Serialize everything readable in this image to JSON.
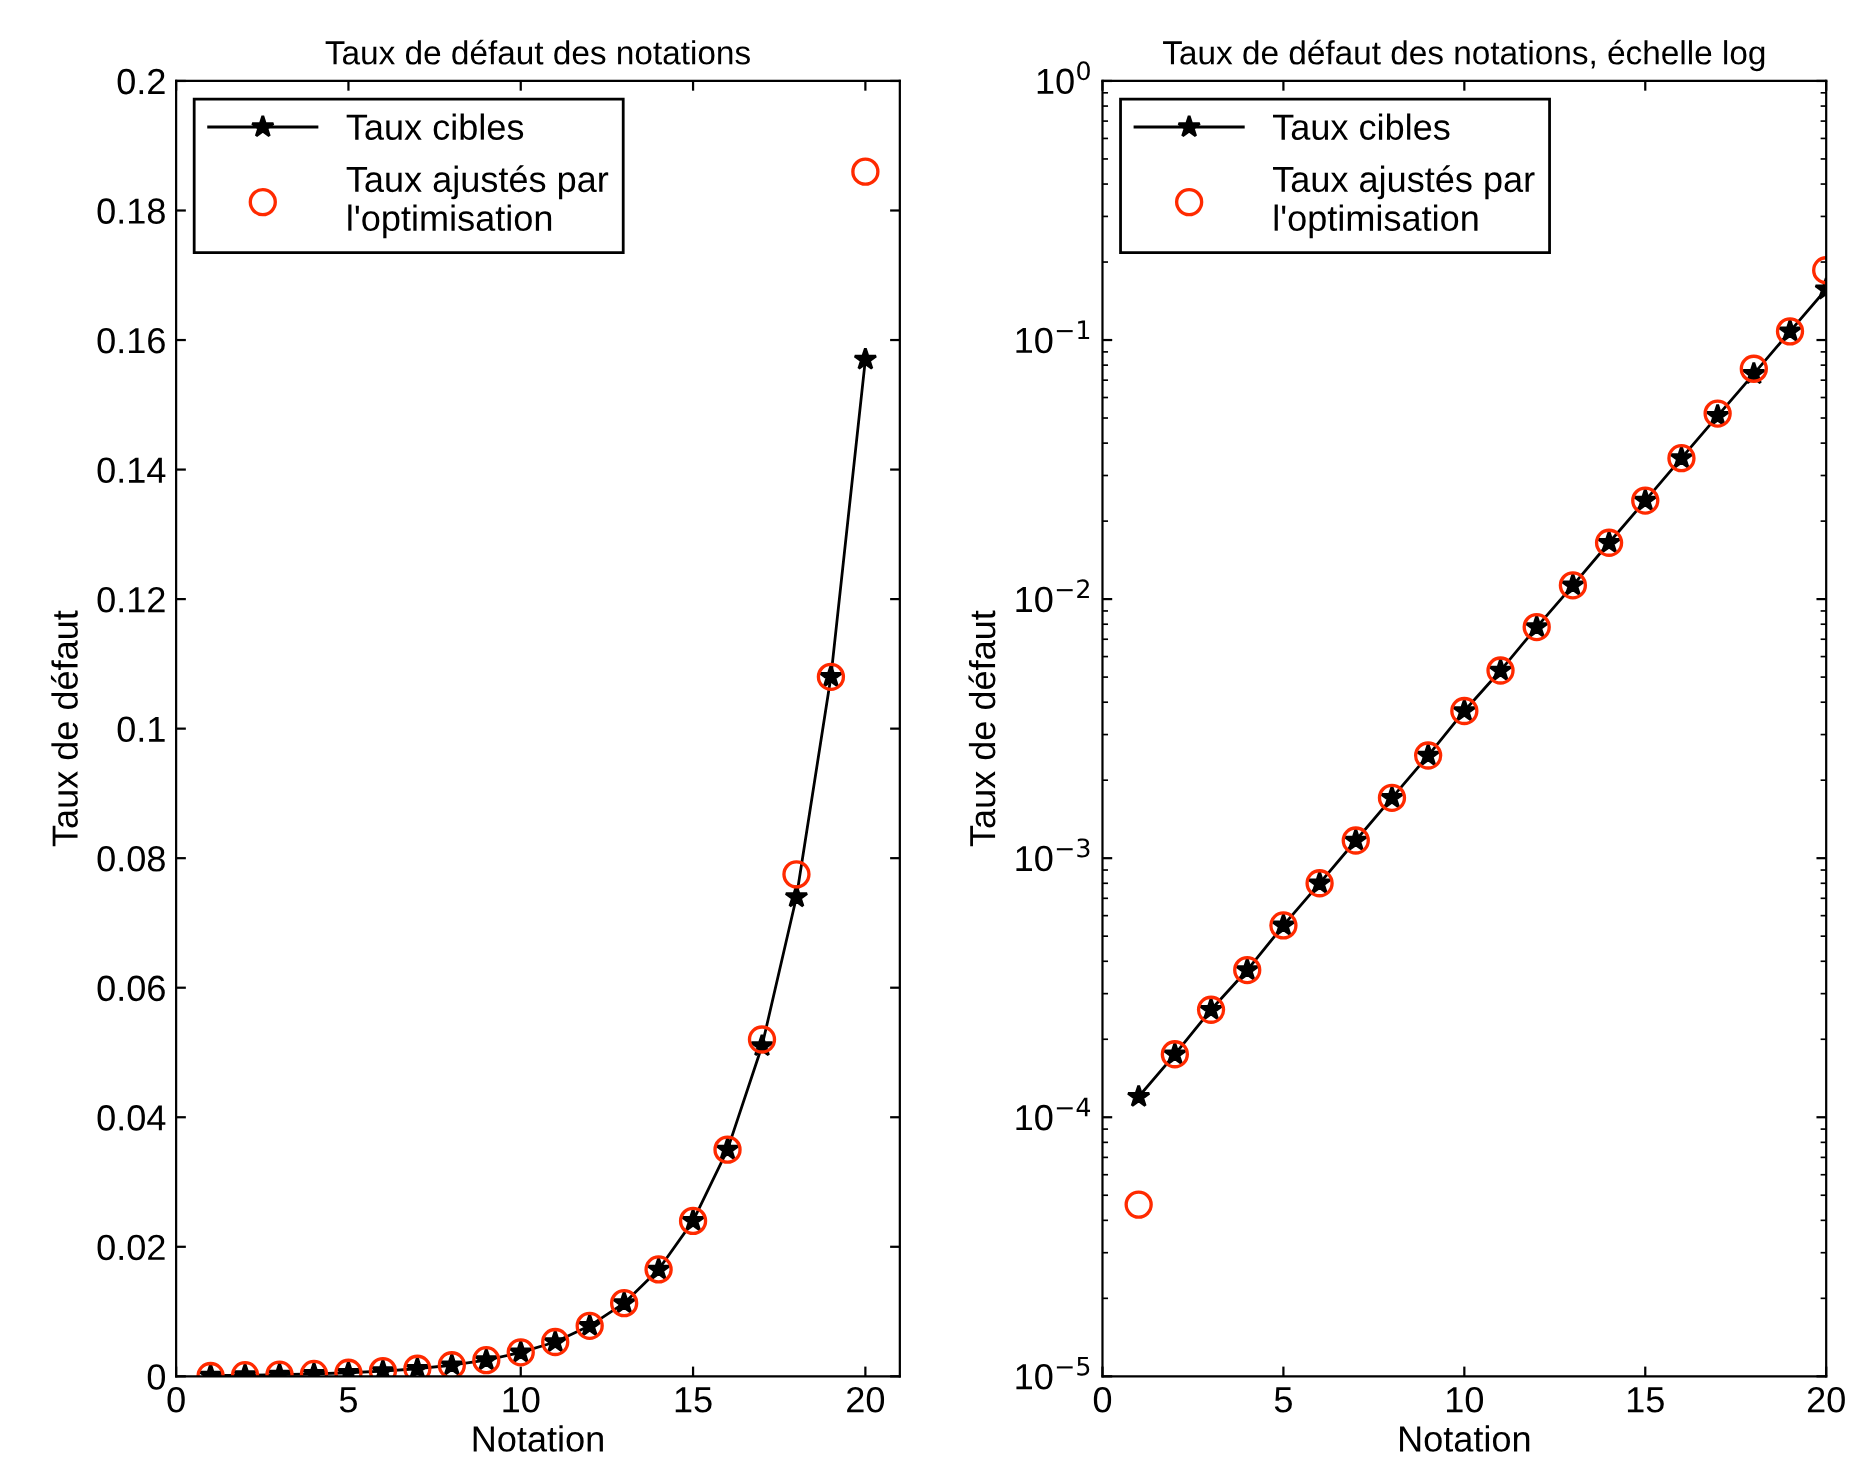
{
  "chart_data": [
    {
      "type": "line",
      "title": "Taux de défaut des notations",
      "xlabel": "Notation",
      "ylabel": "Taux de défaut",
      "x": [
        1,
        2,
        3,
        4,
        5,
        6,
        7,
        8,
        9,
        10,
        11,
        12,
        13,
        14,
        15,
        16,
        17,
        18,
        19,
        20
      ],
      "series": [
        {
          "name": "Taux cibles",
          "color": "#000000",
          "marker": "star",
          "values": [
            0.00012,
            0.000175,
            0.00026,
            0.00037,
            0.00055,
            0.0008,
            0.00117,
            0.00171,
            0.00249,
            0.0037,
            0.0053,
            0.0078,
            0.0113,
            0.0165,
            0.024,
            0.035,
            0.051,
            0.074,
            0.108,
            0.157
          ]
        },
        {
          "name": "Taux ajustés par\nl'optimisation",
          "type": "scatter",
          "color": "#ff2a00",
          "marker": "circle",
          "values": [
            4.6e-05,
            0.000175,
            0.00026,
            0.00037,
            0.00055,
            0.0008,
            0.00117,
            0.00171,
            0.00249,
            0.0037,
            0.0053,
            0.0078,
            0.0113,
            0.0165,
            0.024,
            0.035,
            0.052,
            0.0775,
            0.108,
            0.186
          ]
        }
      ],
      "xlim": [
        0,
        21
      ],
      "xticks": [
        0,
        5,
        10,
        15,
        20
      ],
      "ylim": [
        0,
        0.2
      ],
      "yticks": [
        0,
        0.02,
        0.04,
        0.06,
        0.08,
        0.1,
        0.12,
        0.14,
        0.16,
        0.18,
        0.2
      ],
      "legend": "top left",
      "grid": false
    },
    {
      "type": "line",
      "title": "Taux de défaut des notations, échelle log",
      "xlabel": "Notation",
      "ylabel": "Taux de défaut",
      "x": [
        1,
        2,
        3,
        4,
        5,
        6,
        7,
        8,
        9,
        10,
        11,
        12,
        13,
        14,
        15,
        16,
        17,
        18,
        19,
        20
      ],
      "series": [
        {
          "name": "Taux cibles",
          "color": "#000000",
          "marker": "star",
          "values": [
            0.00012,
            0.000175,
            0.00026,
            0.00037,
            0.00055,
            0.0008,
            0.00117,
            0.00171,
            0.00249,
            0.0037,
            0.0053,
            0.0078,
            0.0113,
            0.0165,
            0.024,
            0.035,
            0.051,
            0.074,
            0.108,
            0.157
          ]
        },
        {
          "name": "Taux ajustés par\nl'optimisation",
          "type": "scatter",
          "color": "#ff2a00",
          "marker": "circle",
          "values": [
            4.6e-05,
            0.000175,
            0.00026,
            0.00037,
            0.00055,
            0.0008,
            0.00117,
            0.00171,
            0.00249,
            0.0037,
            0.0053,
            0.0078,
            0.0113,
            0.0165,
            0.024,
            0.035,
            0.052,
            0.0775,
            0.108,
            0.186
          ]
        }
      ],
      "xlim": [
        0,
        20
      ],
      "xticks": [
        0,
        5,
        10,
        15,
        20
      ],
      "log": "y",
      "ylim": [
        1e-05,
        1
      ],
      "yticks": [
        {
          "value": 1e-05,
          "label": "10$^{−5}$"
        },
        {
          "value": 0.0001,
          "label": "10$^{−4}$"
        },
        {
          "value": 0.001,
          "label": "10$^{−3}$"
        },
        {
          "value": 0.01,
          "label": "10$^{−2}$"
        },
        {
          "value": 0.1,
          "label": "10$^{−1}$"
        },
        {
          "value": 1,
          "label": "10$^{0}$"
        }
      ],
      "legend": "top left",
      "grid": false
    }
  ]
}
